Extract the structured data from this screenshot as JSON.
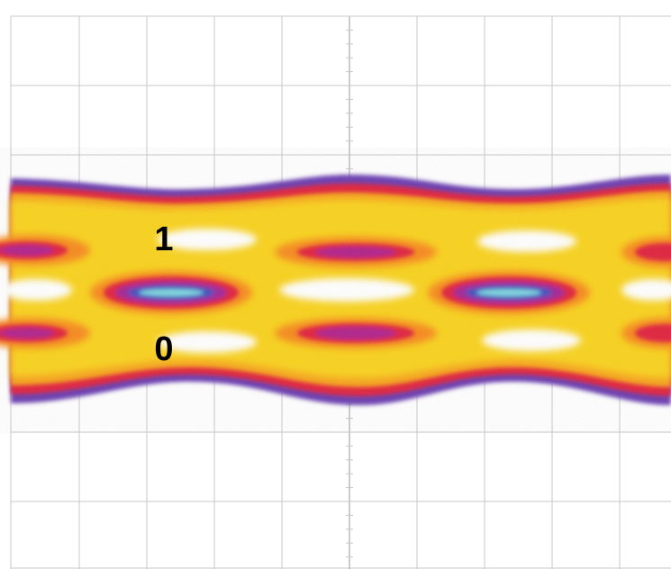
{
  "labels": {
    "one": "1",
    "zero": "0"
  }
}
